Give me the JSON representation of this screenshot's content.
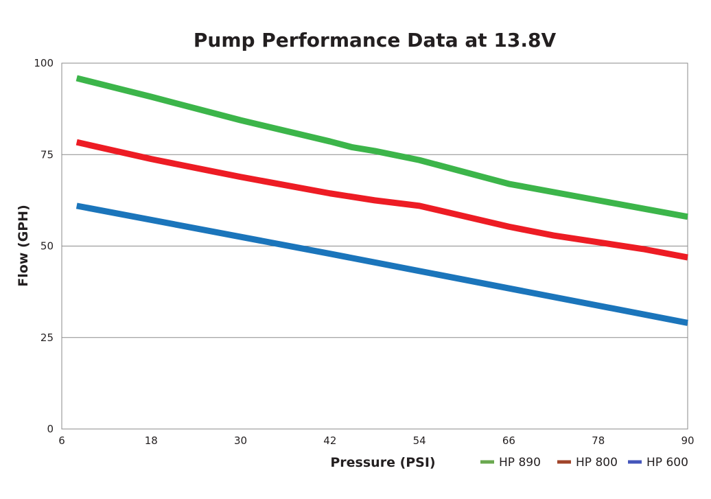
{
  "chart_data": {
    "type": "line",
    "title": "Pump Performance Data at 13.8V",
    "xlabel": "Pressure (PSI)",
    "ylabel": "Flow (GPH)",
    "xlim": [
      6,
      90
    ],
    "ylim": [
      0,
      100
    ],
    "xticks": [
      6,
      18,
      30,
      42,
      54,
      66,
      78,
      90
    ],
    "yticks": [
      0,
      25,
      50,
      75,
      100
    ],
    "grid": "horizontal",
    "legend_position": "bottom-right",
    "series": [
      {
        "name": "HP 890",
        "color": "#3cb54a",
        "legend_color": "#6aa84f",
        "x": [
          8,
          18,
          30,
          42,
          45,
          48,
          54,
          66,
          78,
          90
        ],
        "y": [
          95.9,
          90.8,
          84.4,
          78.6,
          77.0,
          76.0,
          73.5,
          67.0,
          62.5,
          58.0
        ]
      },
      {
        "name": "HP 800",
        "color": "#ed1c24",
        "legend_color": "#a0442a",
        "x": [
          8,
          18,
          30,
          42,
          48,
          54,
          66,
          72,
          84,
          90
        ],
        "y": [
          78.4,
          73.8,
          68.9,
          64.4,
          62.5,
          61.0,
          55.3,
          52.9,
          49.2,
          46.9
        ]
      },
      {
        "name": "HP 600",
        "color": "#1b75bb",
        "legend_color": "#4455bb",
        "x": [
          8,
          42,
          90
        ],
        "y": [
          61.0,
          47.9,
          29.0
        ]
      }
    ]
  }
}
